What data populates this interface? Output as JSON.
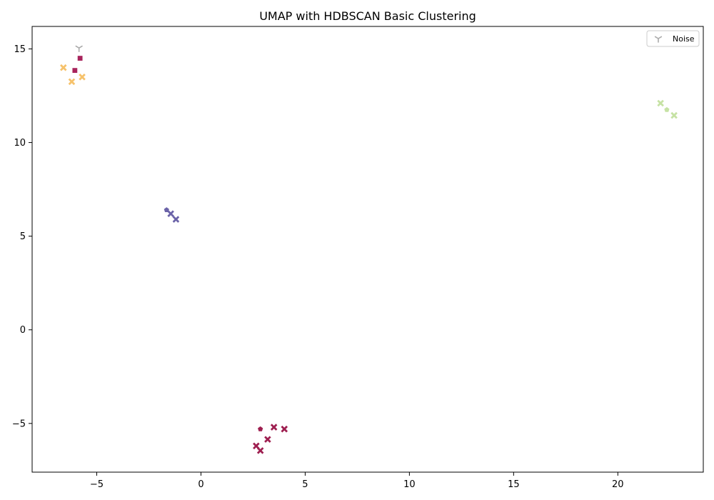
{
  "chart_data": {
    "type": "scatter",
    "title": "UMAP with HDBSCAN Basic Clustering",
    "xlabel": "",
    "ylabel": "",
    "xlim": [
      -8.1,
      24.1
    ],
    "ylim": [
      -7.6,
      16.2
    ],
    "x_ticks": [
      -5,
      0,
      5,
      10,
      15,
      20
    ],
    "y_ticks": [
      -5,
      0,
      5,
      10,
      15
    ],
    "x_tick_labels": [
      "−5",
      "0",
      "5",
      "10",
      "15",
      "20"
    ],
    "y_tick_labels": [
      "−5",
      "0",
      "5",
      "10",
      "15"
    ],
    "grid": false,
    "legend": {
      "position": "top-right",
      "entries": [
        {
          "label": "Noise",
          "color": "#aaaaaa",
          "marker": "tri_down"
        }
      ]
    },
    "series": [
      {
        "color": "#f6c26b",
        "points": [
          {
            "x": -6.6,
            "y": 14.0,
            "marker": "x"
          },
          {
            "x": -6.2,
            "y": 13.25,
            "marker": "x"
          },
          {
            "x": -5.7,
            "y": 13.5,
            "marker": "x"
          }
        ]
      },
      {
        "color": "#a8245c",
        "points": [
          {
            "x": -5.8,
            "y": 14.5,
            "marker": "s"
          },
          {
            "x": -6.05,
            "y": 13.85,
            "marker": "s"
          }
        ]
      },
      {
        "color": "#c6e2a4",
        "points": [
          {
            "x": 22.05,
            "y": 12.1,
            "marker": "x"
          },
          {
            "x": 22.35,
            "y": 11.75,
            "marker": "p"
          },
          {
            "x": 22.7,
            "y": 11.45,
            "marker": "x"
          }
        ]
      },
      {
        "color": "#6b63a8",
        "points": [
          {
            "x": -1.65,
            "y": 6.4,
            "marker": "p"
          },
          {
            "x": -1.45,
            "y": 6.2,
            "marker": "x"
          },
          {
            "x": -1.2,
            "y": 5.9,
            "marker": "x"
          }
        ]
      },
      {
        "color": "#9e1f50",
        "points": [
          {
            "x": 2.85,
            "y": -5.3,
            "marker": "p"
          },
          {
            "x": 3.5,
            "y": -5.2,
            "marker": "x"
          },
          {
            "x": 4.0,
            "y": -5.3,
            "marker": "x"
          },
          {
            "x": 3.2,
            "y": -5.85,
            "marker": "x"
          },
          {
            "x": 2.65,
            "y": -6.2,
            "marker": "x"
          },
          {
            "x": 2.85,
            "y": -6.45,
            "marker": "x"
          }
        ]
      },
      {
        "name": "Noise",
        "color": "#aaaaaa",
        "points": [
          {
            "x": -5.85,
            "y": 15.05,
            "marker": "tri_down"
          }
        ]
      }
    ]
  }
}
